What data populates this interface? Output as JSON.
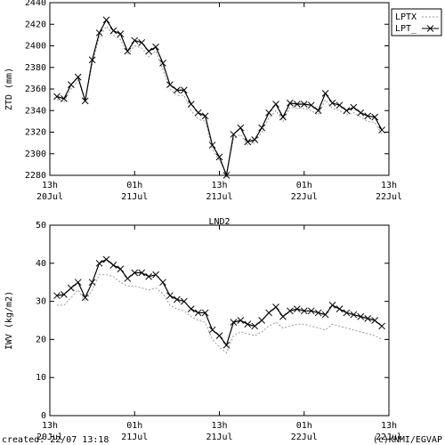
{
  "chart_data": [
    {
      "type": "line",
      "ylabel": "ZTD (mm)",
      "x": [
        1,
        2,
        3,
        4,
        5,
        6,
        7,
        8,
        9,
        10,
        11,
        12,
        13,
        14,
        15,
        16,
        17,
        18,
        19,
        20,
        21,
        22,
        23,
        24,
        25,
        26,
        27,
        28,
        29,
        30,
        31,
        32,
        33,
        34,
        35,
        36,
        37,
        38,
        39,
        40,
        41,
        42,
        43,
        44,
        45,
        46,
        47
      ],
      "xlim": [
        0,
        48
      ],
      "xticks": [
        {
          "value": 0,
          "label": "13h"
        },
        {
          "value": 12,
          "label": "01h"
        },
        {
          "value": 24,
          "label": "13h"
        },
        {
          "value": 36,
          "label": "01h"
        },
        {
          "value": 48,
          "label": "13h"
        }
      ],
      "xtick_dates": [
        "20Jul",
        "21Jul",
        "21Jul",
        "22Jul",
        "22Jul"
      ],
      "ylim": [
        2280,
        2440
      ],
      "yticks": [
        2280,
        2300,
        2320,
        2340,
        2360,
        2380,
        2400,
        2420,
        2440
      ],
      "legend": "outside-right",
      "series": [
        {
          "name": "LPTX",
          "color": "#999999",
          "dash": true,
          "values": [
            2350,
            2348,
            2360,
            2368,
            2350,
            2383,
            2408,
            2418,
            2410,
            2406,
            2392,
            2400,
            2398,
            2390,
            2395,
            2378,
            2360,
            2354,
            2354,
            2340,
            2332,
            2330,
            2304,
            2294,
            2282,
            2314,
            2318,
            2308,
            2310,
            2320,
            2333,
            2340,
            2330,
            2343,
            2342,
            2342,
            2340,
            2336,
            2350,
            2342,
            2340,
            2336,
            2338,
            2334,
            2330,
            2329,
            2318
          ]
        },
        {
          "name": "LPT_",
          "color": "#000000",
          "marker": "x",
          "values": [
            2353,
            2351,
            2364,
            2371,
            2349,
            2387,
            2412,
            2424,
            2414,
            2411,
            2395,
            2405,
            2403,
            2395,
            2399,
            2384,
            2364,
            2359,
            2359,
            2346,
            2338,
            2335,
            2308,
            2297,
            2280,
            2318,
            2324,
            2311,
            2313,
            2324,
            2338,
            2346,
            2334,
            2347,
            2346,
            2346,
            2345,
            2340,
            2356,
            2347,
            2345,
            2340,
            2343,
            2338,
            2335,
            2334,
            2322
          ]
        }
      ]
    },
    {
      "type": "line",
      "title": "LND2",
      "ylabel": "IWV (kg/m2)",
      "x": [
        1,
        2,
        3,
        4,
        5,
        6,
        7,
        8,
        9,
        10,
        11,
        12,
        13,
        14,
        15,
        16,
        17,
        18,
        19,
        20,
        21,
        22,
        23,
        24,
        25,
        26,
        27,
        28,
        29,
        30,
        31,
        32,
        33,
        34,
        35,
        36,
        37,
        38,
        39,
        40,
        41,
        42,
        43,
        44,
        45,
        46,
        47
      ],
      "xlim": [
        0,
        48
      ],
      "xticks": [
        {
          "value": 0,
          "label": "13h"
        },
        {
          "value": 12,
          "label": "01h"
        },
        {
          "value": 24,
          "label": "13h"
        },
        {
          "value": 36,
          "label": "01h"
        },
        {
          "value": 48,
          "label": "13h"
        }
      ],
      "xtick_dates": [
        "20Jul",
        "21Jul",
        "21Jul",
        "22Jul",
        "22Jul"
      ],
      "ylim": [
        0,
        50
      ],
      "yticks": [
        0,
        10,
        20,
        30,
        40,
        50
      ],
      "series": [
        {
          "name": "LPTX",
          "color": "#999999",
          "dash": true,
          "values": [
            29,
            29,
            31,
            33,
            30,
            33,
            37,
            37,
            36.5,
            35,
            34,
            34,
            33.5,
            33,
            33.5,
            32,
            29,
            28,
            27.5,
            26,
            25,
            24.5,
            20,
            18,
            16.5,
            21,
            22,
            21.5,
            21,
            22,
            23.5,
            24.5,
            23,
            23.5,
            24,
            24,
            23.5,
            23,
            22.5,
            24,
            23.5,
            23,
            22.5,
            22,
            21.5,
            21,
            20
          ]
        },
        {
          "name": "LPT_",
          "color": "#000000",
          "marker": "x",
          "values": [
            31.5,
            31.8,
            33.5,
            35,
            31,
            35,
            40,
            41,
            39.5,
            38.5,
            36,
            37.5,
            37.5,
            36.5,
            37,
            35,
            31.5,
            30.5,
            30,
            28,
            27,
            27,
            22.5,
            21,
            18.5,
            24.5,
            25,
            24,
            23.5,
            25,
            27,
            28.5,
            26,
            27.5,
            28,
            27.5,
            27.5,
            27,
            26.5,
            29,
            28,
            27,
            26.5,
            26,
            25.5,
            25,
            23.5
          ]
        }
      ]
    }
  ],
  "footer": {
    "left": "created: 22/07 13:18",
    "right": "(c)KNMI/EGVAP"
  }
}
